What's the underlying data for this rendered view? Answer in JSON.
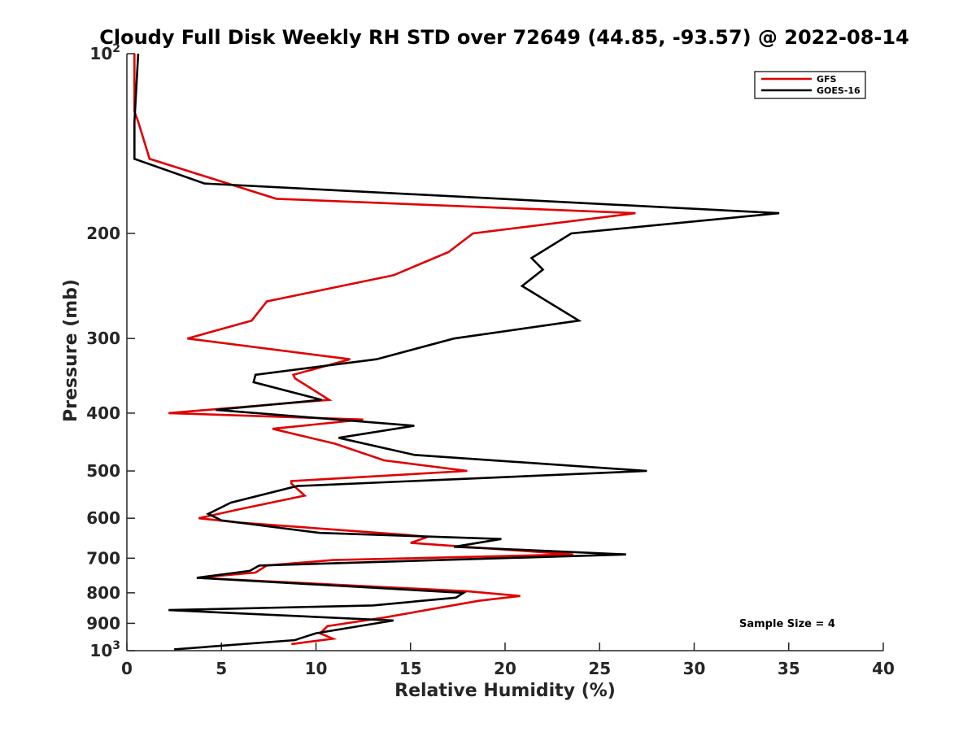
{
  "chart_data": {
    "type": "line",
    "title": "Cloudy Full Disk Weekly RH STD over 72649 (44.85, -93.57) @ 2022-08-14",
    "xlabel": "Relative Humidity (%)",
    "ylabel": "Pressure (mb)",
    "xlim": [
      0,
      40
    ],
    "ylim": [
      100,
      1000
    ],
    "y_scale": "log",
    "y_reversed": true,
    "x_ticks": [
      0,
      5,
      10,
      15,
      20,
      25,
      30,
      35,
      40
    ],
    "y_ticks": [
      {
        "value": 100,
        "label": "10",
        "sup": "2"
      },
      {
        "value": 200,
        "label": "200"
      },
      {
        "value": 300,
        "label": "300"
      },
      {
        "value": 400,
        "label": "400"
      },
      {
        "value": 500,
        "label": "500"
      },
      {
        "value": 600,
        "label": "600"
      },
      {
        "value": 700,
        "label": "700"
      },
      {
        "value": 800,
        "label": "800"
      },
      {
        "value": 900,
        "label": "900"
      },
      {
        "value": 1000,
        "label": "10",
        "sup": "3"
      }
    ],
    "grid": false,
    "legend_position": "top-right",
    "annotation": "Sample Size = 4",
    "series": [
      {
        "name": "GFS",
        "color": "#e00000",
        "points": [
          [
            0.4,
            100
          ],
          [
            0.4,
            125
          ],
          [
            0.6,
            130
          ],
          [
            1.2,
            150
          ],
          [
            7.9,
            175
          ],
          [
            26.9,
            185
          ],
          [
            18.3,
            200
          ],
          [
            17.0,
            215
          ],
          [
            14.1,
            235
          ],
          [
            7.4,
            260
          ],
          [
            6.6,
            280
          ],
          [
            3.2,
            300
          ],
          [
            11.8,
            325
          ],
          [
            8.8,
            345
          ],
          [
            8.9,
            350
          ],
          [
            10.7,
            380
          ],
          [
            2.2,
            400
          ],
          [
            12.5,
            410
          ],
          [
            7.7,
            425
          ],
          [
            11.0,
            450
          ],
          [
            13.6,
            480
          ],
          [
            18.0,
            500
          ],
          [
            8.7,
            520
          ],
          [
            8.7,
            525
          ],
          [
            9.4,
            550
          ],
          [
            5.9,
            580
          ],
          [
            3.8,
            600
          ],
          [
            5.9,
            610
          ],
          [
            14.8,
            640
          ],
          [
            15.9,
            645
          ],
          [
            15.0,
            660
          ],
          [
            23.6,
            690
          ],
          [
            10.9,
            705
          ],
          [
            7.4,
            720
          ],
          [
            6.8,
            740
          ],
          [
            3.7,
            755
          ],
          [
            18.0,
            795
          ],
          [
            20.8,
            810
          ],
          [
            18.6,
            825
          ],
          [
            13.6,
            880
          ],
          [
            10.6,
            910
          ],
          [
            10.3,
            930
          ],
          [
            10.2,
            935
          ],
          [
            10.9,
            955
          ],
          [
            8.7,
            975
          ]
        ]
      },
      {
        "name": "GOES-16",
        "color": "#000000",
        "points": [
          [
            0.6,
            100
          ],
          [
            0.4,
            130
          ],
          [
            0.4,
            150
          ],
          [
            4.1,
            165
          ],
          [
            34.5,
            185
          ],
          [
            23.5,
            200
          ],
          [
            21.4,
            220
          ],
          [
            22.0,
            230
          ],
          [
            20.9,
            245
          ],
          [
            23.9,
            280
          ],
          [
            17.3,
            300
          ],
          [
            13.2,
            325
          ],
          [
            6.8,
            345
          ],
          [
            6.7,
            355
          ],
          [
            10.3,
            380
          ],
          [
            4.7,
            395
          ],
          [
            15.2,
            420
          ],
          [
            11.2,
            440
          ],
          [
            15.2,
            470
          ],
          [
            27.5,
            500
          ],
          [
            9.0,
            530
          ],
          [
            5.5,
            565
          ],
          [
            4.3,
            590
          ],
          [
            5.0,
            605
          ],
          [
            10.2,
            635
          ],
          [
            19.8,
            650
          ],
          [
            17.3,
            670
          ],
          [
            26.4,
            690
          ],
          [
            7.0,
            720
          ],
          [
            6.5,
            735
          ],
          [
            3.7,
            755
          ],
          [
            17.8,
            800
          ],
          [
            17.4,
            815
          ],
          [
            13.0,
            840
          ],
          [
            2.2,
            855
          ],
          [
            14.1,
            890
          ],
          [
            10.0,
            935
          ],
          [
            9.1,
            955
          ],
          [
            8.9,
            960
          ],
          [
            2.5,
            995
          ]
        ]
      }
    ]
  }
}
